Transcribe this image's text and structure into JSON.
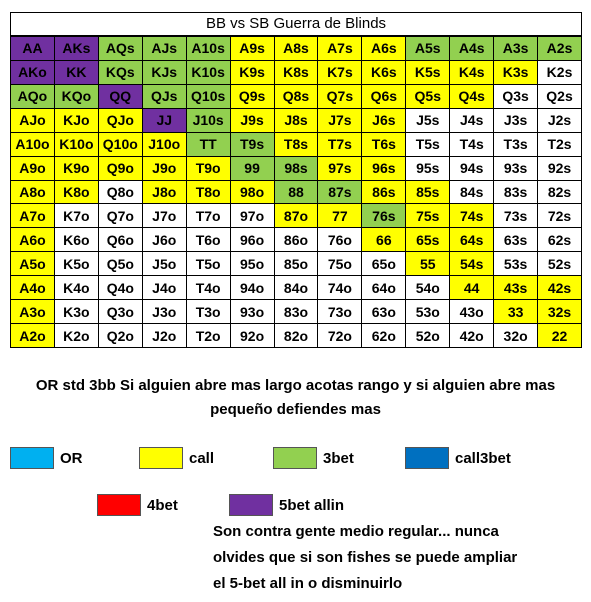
{
  "title": "BB vs SB Guerra de Blinds",
  "colors": {
    "P": "#7030A0",
    "G": "#92D050",
    "Y": "#FFFF00",
    "W": "#FFFFFF",
    "OR": "#00B0F0",
    "call3bet": "#0070C0",
    "4bet": "#FF0000"
  },
  "grid": [
    [
      [
        "AA",
        "P"
      ],
      [
        "AKs",
        "P"
      ],
      [
        "AQs",
        "G"
      ],
      [
        "AJs",
        "G"
      ],
      [
        "A10s",
        "G"
      ],
      [
        "A9s",
        "Y"
      ],
      [
        "A8s",
        "Y"
      ],
      [
        "A7s",
        "Y"
      ],
      [
        "A6s",
        "Y"
      ],
      [
        "A5s",
        "G"
      ],
      [
        "A4s",
        "G"
      ],
      [
        "A3s",
        "G"
      ],
      [
        "A2s",
        "G"
      ]
    ],
    [
      [
        "AKo",
        "P"
      ],
      [
        "KK",
        "P"
      ],
      [
        "KQs",
        "G"
      ],
      [
        "KJs",
        "G"
      ],
      [
        "K10s",
        "G"
      ],
      [
        "K9s",
        "Y"
      ],
      [
        "K8s",
        "Y"
      ],
      [
        "K7s",
        "Y"
      ],
      [
        "K6s",
        "Y"
      ],
      [
        "K5s",
        "Y"
      ],
      [
        "K4s",
        "Y"
      ],
      [
        "K3s",
        "Y"
      ],
      [
        "K2s",
        "W"
      ]
    ],
    [
      [
        "AQo",
        "G"
      ],
      [
        "KQo",
        "G"
      ],
      [
        "QQ",
        "P"
      ],
      [
        "QJs",
        "G"
      ],
      [
        "Q10s",
        "G"
      ],
      [
        "Q9s",
        "Y"
      ],
      [
        "Q8s",
        "Y"
      ],
      [
        "Q7s",
        "Y"
      ],
      [
        "Q6s",
        "Y"
      ],
      [
        "Q5s",
        "Y"
      ],
      [
        "Q4s",
        "Y"
      ],
      [
        "Q3s",
        "W"
      ],
      [
        "Q2s",
        "W"
      ]
    ],
    [
      [
        "AJo",
        "Y"
      ],
      [
        "KJo",
        "Y"
      ],
      [
        "QJo",
        "Y"
      ],
      [
        "JJ",
        "P"
      ],
      [
        "J10s",
        "G"
      ],
      [
        "J9s",
        "Y"
      ],
      [
        "J8s",
        "Y"
      ],
      [
        "J7s",
        "Y"
      ],
      [
        "J6s",
        "Y"
      ],
      [
        "J5s",
        "W"
      ],
      [
        "J4s",
        "W"
      ],
      [
        "J3s",
        "W"
      ],
      [
        "J2s",
        "W"
      ]
    ],
    [
      [
        "A10o",
        "Y"
      ],
      [
        "K10o",
        "Y"
      ],
      [
        "Q10o",
        "Y"
      ],
      [
        "J10o",
        "Y"
      ],
      [
        "TT",
        "G"
      ],
      [
        "T9s",
        "G"
      ],
      [
        "T8s",
        "Y"
      ],
      [
        "T7s",
        "Y"
      ],
      [
        "T6s",
        "Y"
      ],
      [
        "T5s",
        "W"
      ],
      [
        "T4s",
        "W"
      ],
      [
        "T3s",
        "W"
      ],
      [
        "T2s",
        "W"
      ]
    ],
    [
      [
        "A9o",
        "Y"
      ],
      [
        "K9o",
        "Y"
      ],
      [
        "Q9o",
        "Y"
      ],
      [
        "J9o",
        "Y"
      ],
      [
        "T9o",
        "Y"
      ],
      [
        "99",
        "G"
      ],
      [
        "98s",
        "G"
      ],
      [
        "97s",
        "Y"
      ],
      [
        "96s",
        "Y"
      ],
      [
        "95s",
        "W"
      ],
      [
        "94s",
        "W"
      ],
      [
        "93s",
        "W"
      ],
      [
        "92s",
        "W"
      ]
    ],
    [
      [
        "A8o",
        "Y"
      ],
      [
        "K8o",
        "Y"
      ],
      [
        "Q8o",
        "W"
      ],
      [
        "J8o",
        "Y"
      ],
      [
        "T8o",
        "Y"
      ],
      [
        "98o",
        "Y"
      ],
      [
        "88",
        "G"
      ],
      [
        "87s",
        "G"
      ],
      [
        "86s",
        "Y"
      ],
      [
        "85s",
        "Y"
      ],
      [
        "84s",
        "W"
      ],
      [
        "83s",
        "W"
      ],
      [
        "82s",
        "W"
      ]
    ],
    [
      [
        "A7o",
        "Y"
      ],
      [
        "K7o",
        "W"
      ],
      [
        "Q7o",
        "W"
      ],
      [
        "J7o",
        "W"
      ],
      [
        "T7o",
        "W"
      ],
      [
        "97o",
        "W"
      ],
      [
        "87o",
        "Y"
      ],
      [
        "77",
        "Y"
      ],
      [
        "76s",
        "G"
      ],
      [
        "75s",
        "Y"
      ],
      [
        "74s",
        "Y"
      ],
      [
        "73s",
        "W"
      ],
      [
        "72s",
        "W"
      ]
    ],
    [
      [
        "A6o",
        "Y"
      ],
      [
        "K6o",
        "W"
      ],
      [
        "Q6o",
        "W"
      ],
      [
        "J6o",
        "W"
      ],
      [
        "T6o",
        "W"
      ],
      [
        "96o",
        "W"
      ],
      [
        "86o",
        "W"
      ],
      [
        "76o",
        "W"
      ],
      [
        "66",
        "Y"
      ],
      [
        "65s",
        "Y"
      ],
      [
        "64s",
        "Y"
      ],
      [
        "63s",
        "W"
      ],
      [
        "62s",
        "W"
      ]
    ],
    [
      [
        "A5o",
        "Y"
      ],
      [
        "K5o",
        "W"
      ],
      [
        "Q5o",
        "W"
      ],
      [
        "J5o",
        "W"
      ],
      [
        "T5o",
        "W"
      ],
      [
        "95o",
        "W"
      ],
      [
        "85o",
        "W"
      ],
      [
        "75o",
        "W"
      ],
      [
        "65o",
        "W"
      ],
      [
        "55",
        "Y"
      ],
      [
        "54s",
        "Y"
      ],
      [
        "53s",
        "W"
      ],
      [
        "52s",
        "W"
      ]
    ],
    [
      [
        "A4o",
        "Y"
      ],
      [
        "K4o",
        "W"
      ],
      [
        "Q4o",
        "W"
      ],
      [
        "J4o",
        "W"
      ],
      [
        "T4o",
        "W"
      ],
      [
        "94o",
        "W"
      ],
      [
        "84o",
        "W"
      ],
      [
        "74o",
        "W"
      ],
      [
        "64o",
        "W"
      ],
      [
        "54o",
        "W"
      ],
      [
        "44",
        "Y"
      ],
      [
        "43s",
        "Y"
      ],
      [
        "42s",
        "Y"
      ]
    ],
    [
      [
        "A3o",
        "Y"
      ],
      [
        "K3o",
        "W"
      ],
      [
        "Q3o",
        "W"
      ],
      [
        "J3o",
        "W"
      ],
      [
        "T3o",
        "W"
      ],
      [
        "93o",
        "W"
      ],
      [
        "83o",
        "W"
      ],
      [
        "73o",
        "W"
      ],
      [
        "63o",
        "W"
      ],
      [
        "53o",
        "W"
      ],
      [
        "43o",
        "W"
      ],
      [
        "33",
        "Y"
      ],
      [
        "32s",
        "Y"
      ]
    ],
    [
      [
        "A2o",
        "Y"
      ],
      [
        "K2o",
        "W"
      ],
      [
        "Q2o",
        "W"
      ],
      [
        "J2o",
        "W"
      ],
      [
        "T2o",
        "W"
      ],
      [
        "92o",
        "W"
      ],
      [
        "82o",
        "W"
      ],
      [
        "72o",
        "W"
      ],
      [
        "62o",
        "W"
      ],
      [
        "52o",
        "W"
      ],
      [
        "42o",
        "W"
      ],
      [
        "32o",
        "W"
      ],
      [
        "22",
        "Y"
      ]
    ]
  ],
  "note_line1": "OR std 3bb Si alguien abre mas largo acotas rango y si alguien abre mas",
  "note_line2": "pequeño defiendes mas",
  "legend": {
    "or": "OR",
    "call": "call",
    "threebet": "3bet",
    "call3bet": "call3bet",
    "fourbet": "4bet",
    "fivebet": "5bet allin"
  },
  "footnote": {
    "line1": "Son contra gente medio regular... nunca",
    "line2": "olvides que si son fishes se puede ampliar",
    "line3": "el 5-bet all in o disminuirlo"
  }
}
